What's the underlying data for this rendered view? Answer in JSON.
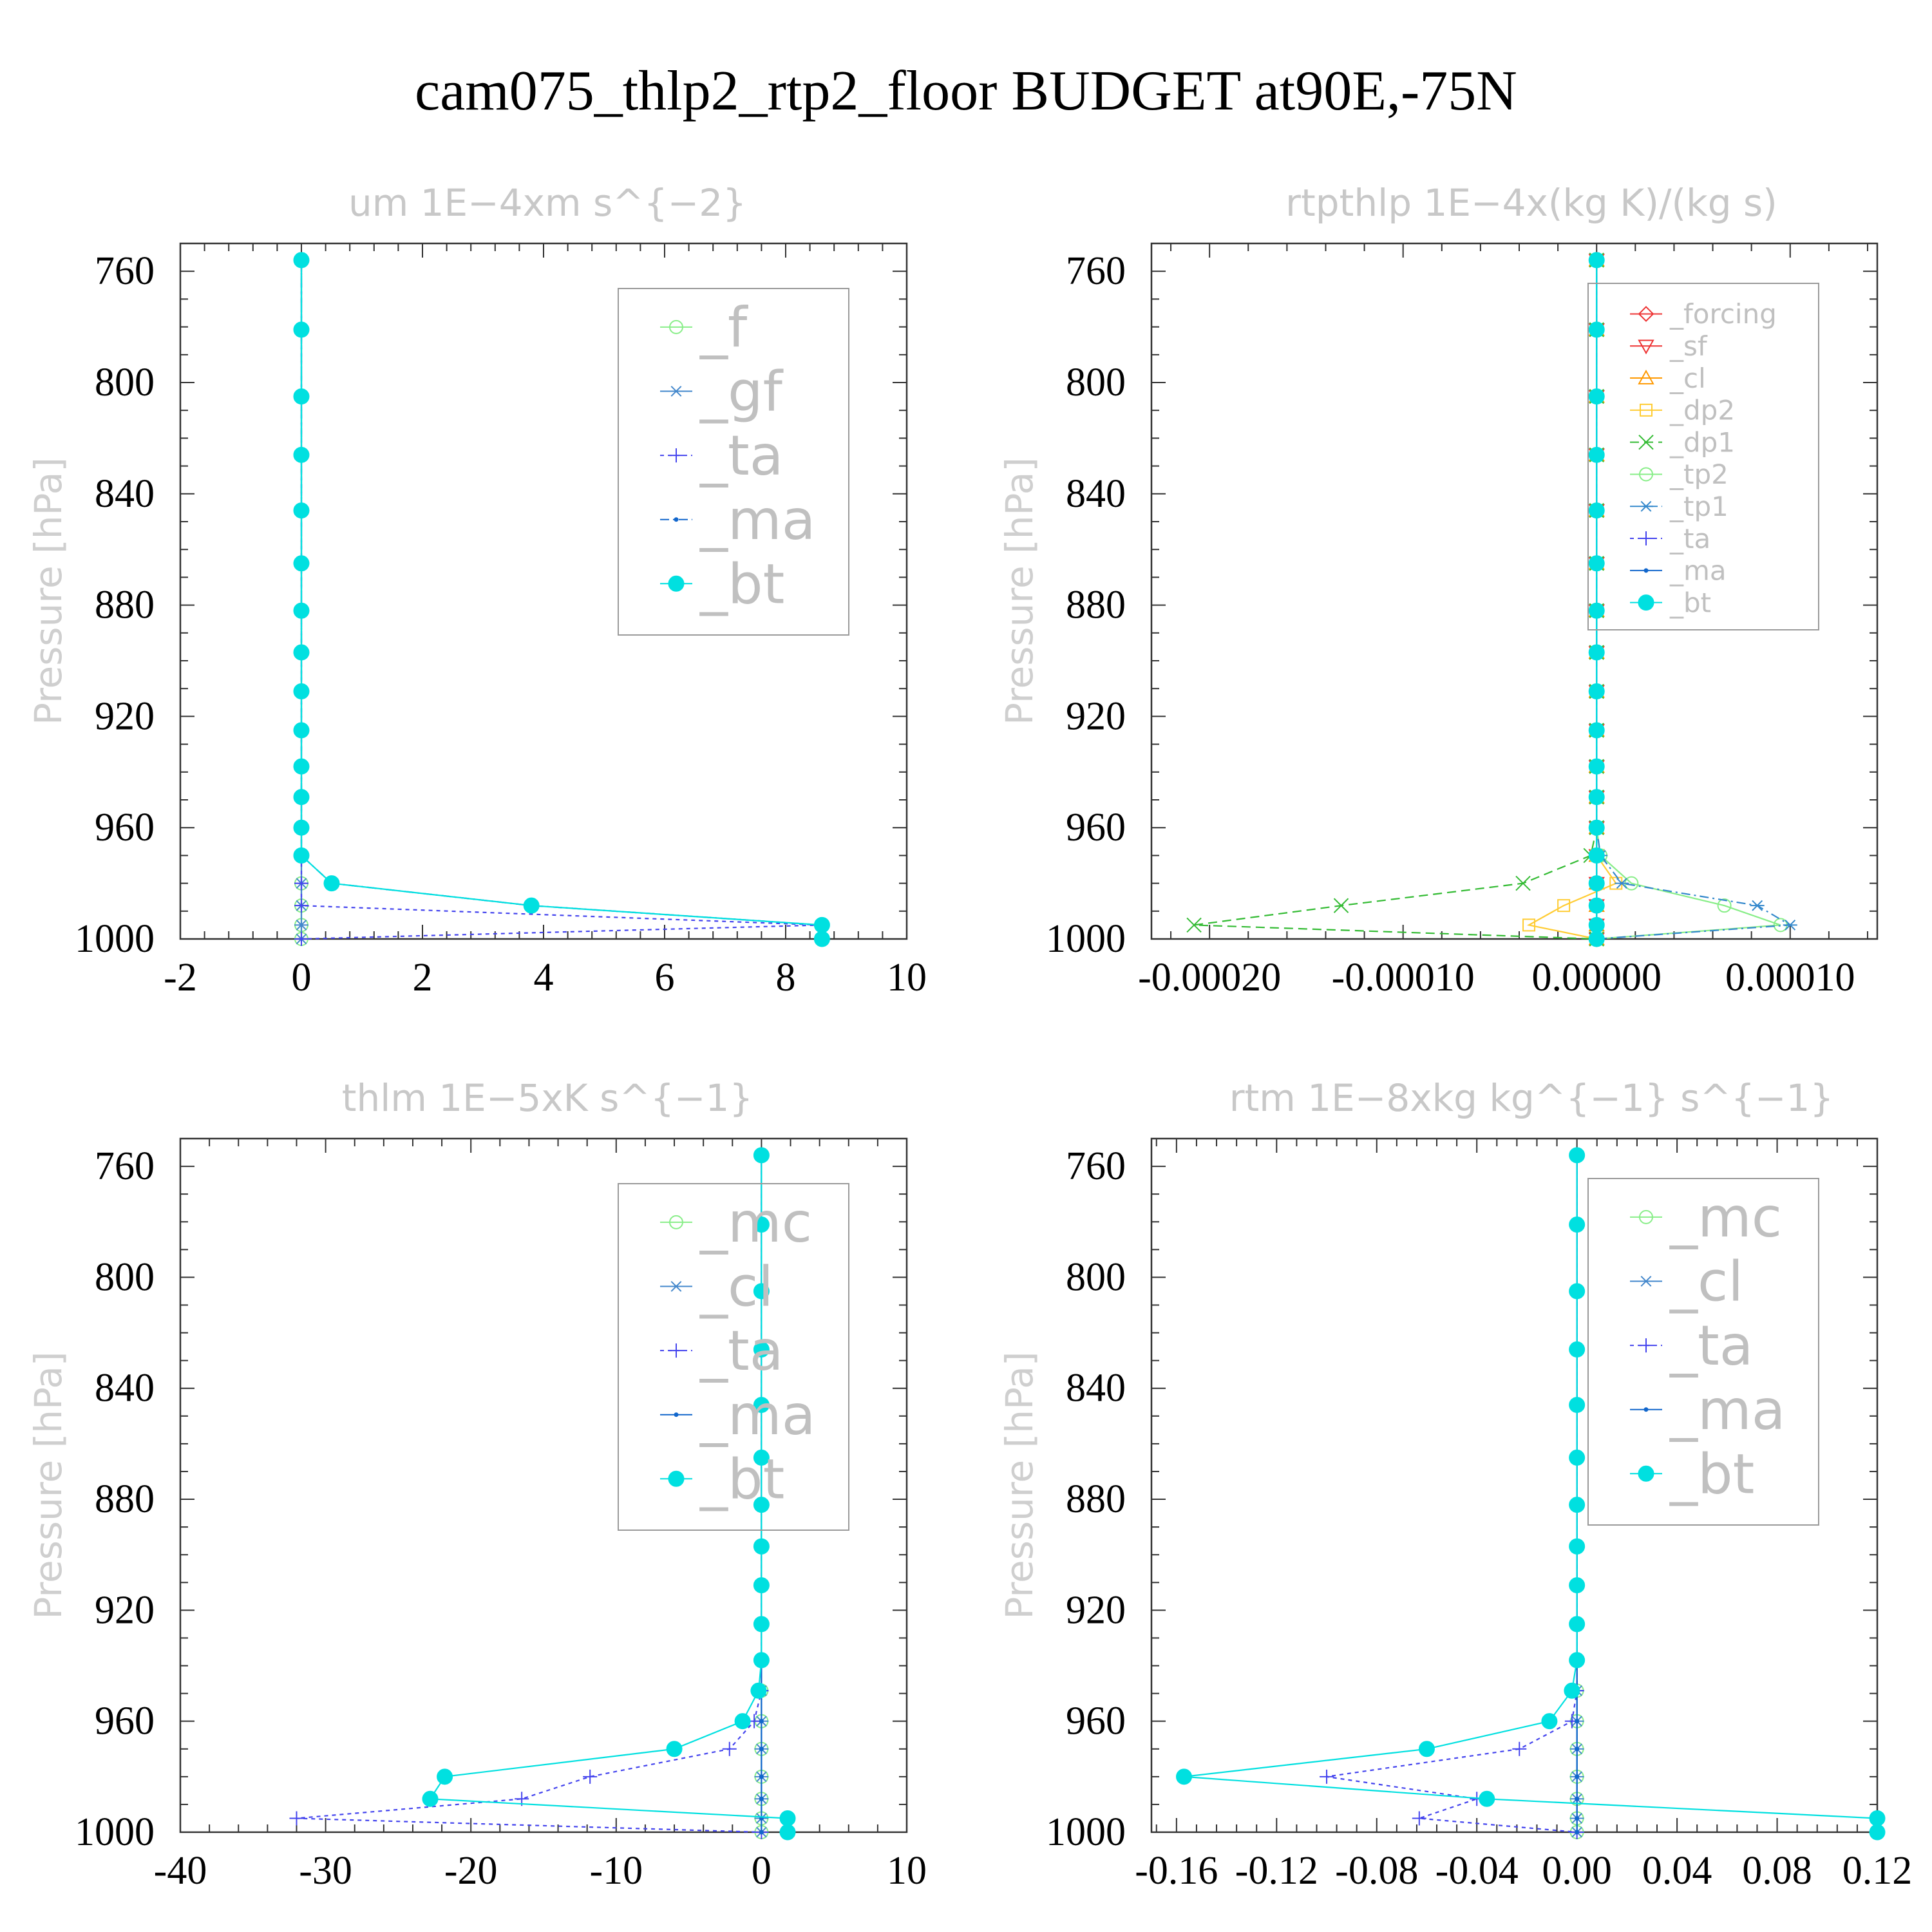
{
  "title": "cam075_thlp2_rtp2_floor  BUDGET at90E,-75N",
  "chart_data": [
    {
      "type": "line",
      "title": "um   1E−4xm s^{−2}",
      "ylabel": "Pressure [hPa]",
      "xlim": [
        -2,
        10
      ],
      "ylim": [
        1000,
        750
      ],
      "xticks": [
        -2,
        0,
        2,
        4,
        6,
        8,
        10
      ],
      "xtick_labels": [
        "-2",
        "0",
        "2",
        "4",
        "6",
        "8",
        "10"
      ],
      "yticks": [
        760,
        800,
        840,
        880,
        920,
        960,
        1000
      ],
      "ytick_labels": [
        "760",
        "800",
        "840",
        "880",
        "920",
        "960",
        "1000"
      ],
      "legend_position": "top-right",
      "legend_font": 86,
      "levels": [
        756,
        781,
        805,
        826,
        846,
        865,
        882,
        897,
        911,
        925,
        938,
        949,
        960,
        970,
        980,
        988,
        995,
        1000
      ],
      "series": [
        {
          "name": "_f",
          "color": "#88ee88",
          "marker": "circle",
          "dash": "",
          "values": [
            0,
            0,
            0,
            0,
            0,
            0,
            0,
            0,
            0,
            0,
            0,
            0,
            0,
            0,
            0,
            0,
            0,
            0
          ]
        },
        {
          "name": "_gf",
          "color": "#4488cc",
          "marker": "star",
          "dash": "",
          "values": [
            0,
            0,
            0,
            0,
            0,
            0,
            0,
            0,
            0,
            0,
            0,
            0,
            0,
            0,
            0,
            0,
            0,
            0
          ]
        },
        {
          "name": "_ta",
          "color": "#4444ee",
          "marker": "plus",
          "dash": "6,6",
          "values": [
            0,
            0,
            0,
            0,
            0,
            0,
            0,
            0,
            0,
            0,
            0,
            0,
            0,
            0,
            0,
            0,
            8.6,
            0
          ]
        },
        {
          "name": "_ma",
          "color": "#1166cc",
          "marker": "dot",
          "dash": "14,6,3,6",
          "values": [
            0,
            0,
            0,
            0,
            0,
            0,
            0,
            0,
            0,
            0,
            0,
            0,
            0,
            0,
            0.5,
            3.8,
            8.6,
            8.6
          ]
        },
        {
          "name": "_bt",
          "color": "#00e0e0",
          "marker": "filled",
          "dash": "",
          "values": [
            0,
            0,
            0,
            0,
            0,
            0,
            0,
            0,
            0,
            0,
            0,
            0,
            0,
            0,
            0.5,
            3.8,
            8.6,
            8.6
          ]
        }
      ]
    },
    {
      "type": "line",
      "title": "rtpthlp   1E−4x(kg K)/(kg s)",
      "ylabel": "Pressure [hPa]",
      "xlim": [
        -0.00023,
        0.000145
      ],
      "ylim": [
        1000,
        750
      ],
      "xticks": [
        -0.0002,
        -0.0001,
        0.0,
        0.0001
      ],
      "xtick_labels": [
        "-0.00020",
        "-0.00010",
        "0.00000",
        "0.00010"
      ],
      "yticks": [
        760,
        800,
        840,
        880,
        920,
        960,
        1000
      ],
      "ytick_labels": [
        "760",
        "800",
        "840",
        "880",
        "920",
        "960",
        "1000"
      ],
      "legend_position": "top-right",
      "legend_font": 42,
      "levels": [
        756,
        781,
        805,
        826,
        846,
        865,
        882,
        897,
        911,
        925,
        938,
        949,
        960,
        970,
        980,
        988,
        995,
        1000
      ],
      "series": [
        {
          "name": "_forcing",
          "color": "#ee3333",
          "marker": "diamond",
          "dash": "",
          "values": [
            0,
            0,
            0,
            0,
            0,
            0,
            0,
            0,
            0,
            0,
            0,
            0,
            0,
            0,
            0,
            0,
            0,
            0
          ]
        },
        {
          "name": "_sf",
          "color": "#ee3333",
          "marker": "tri-down",
          "dash": "",
          "values": [
            0,
            0,
            0,
            0,
            0,
            0,
            0,
            0,
            0,
            0,
            0,
            0,
            0,
            0,
            0,
            0,
            0,
            0
          ]
        },
        {
          "name": "_cl",
          "color": "#ff9900",
          "marker": "tri-up",
          "dash": "",
          "values": [
            0,
            0,
            0,
            0,
            0,
            0,
            0,
            0,
            0,
            0,
            0,
            0,
            0,
            0,
            0,
            0,
            0,
            0
          ]
        },
        {
          "name": "_dp2",
          "color": "#ffcc33",
          "marker": "square",
          "dash": "",
          "values": [
            0,
            0,
            0,
            0,
            0,
            0,
            0,
            0,
            0,
            0,
            0,
            0,
            0,
            0,
            1e-05,
            -1.7e-05,
            -3.5e-05,
            0
          ]
        },
        {
          "name": "_dp1",
          "color": "#33bb33",
          "marker": "cross",
          "dash": "14,8",
          "values": [
            0,
            0,
            0,
            0,
            0,
            0,
            0,
            0,
            0,
            0,
            0,
            0,
            0,
            -3e-06,
            -3.8e-05,
            -0.000132,
            -0.000208,
            0
          ]
        },
        {
          "name": "_tp2",
          "color": "#88ee88",
          "marker": "circle",
          "dash": "",
          "values": [
            0,
            0,
            0,
            0,
            0,
            0,
            0,
            0,
            0,
            0,
            0,
            0,
            0,
            2e-06,
            1.8e-05,
            6.6e-05,
            9.5e-05,
            0
          ]
        },
        {
          "name": "_tp1",
          "color": "#3388cc",
          "marker": "star",
          "dash": "14,6,3,6",
          "values": [
            0,
            0,
            0,
            0,
            0,
            0,
            0,
            0,
            0,
            0,
            0,
            0,
            0,
            2e-06,
            1.3e-05,
            8.3e-05,
            0.0001,
            0
          ]
        },
        {
          "name": "_ta",
          "color": "#4444ee",
          "marker": "plus",
          "dash": "6,6",
          "values": [
            0,
            0,
            0,
            0,
            0,
            0,
            0,
            0,
            0,
            0,
            0,
            0,
            0,
            0,
            0,
            0,
            0,
            0
          ]
        },
        {
          "name": "_ma",
          "color": "#1166cc",
          "marker": "dot",
          "dash": "",
          "values": [
            0,
            0,
            0,
            0,
            0,
            0,
            0,
            0,
            0,
            0,
            0,
            0,
            0,
            0,
            0,
            0,
            0,
            0
          ]
        },
        {
          "name": "_bt",
          "color": "#00e0e0",
          "marker": "filled",
          "dash": "",
          "values": [
            0,
            0,
            0,
            0,
            0,
            0,
            0,
            0,
            0,
            0,
            0,
            0,
            0,
            0,
            0,
            0,
            0,
            0
          ]
        }
      ]
    },
    {
      "type": "line",
      "title": "thlm   1E−5xK s^{−1}",
      "ylabel": "Pressure [hPa]",
      "xlim": [
        -40,
        10
      ],
      "ylim": [
        1000,
        750
      ],
      "xticks": [
        -40,
        -30,
        -20,
        -10,
        0,
        10
      ],
      "xtick_labels": [
        "-40",
        "-30",
        "-20",
        "-10",
        "0",
        "10"
      ],
      "yticks": [
        760,
        800,
        840,
        880,
        920,
        960,
        1000
      ],
      "ytick_labels": [
        "760",
        "800",
        "840",
        "880",
        "920",
        "960",
        "1000"
      ],
      "legend_position": "top-right",
      "legend_font": 86,
      "levels": [
        756,
        781,
        805,
        826,
        846,
        865,
        882,
        897,
        911,
        925,
        938,
        949,
        960,
        970,
        980,
        988,
        995,
        1000
      ],
      "series": [
        {
          "name": "_mc",
          "color": "#88ee88",
          "marker": "circle",
          "dash": "",
          "values": [
            0,
            0,
            0,
            0,
            0,
            0,
            0,
            0,
            0,
            0,
            0,
            0,
            0,
            0,
            0,
            0,
            0,
            0
          ]
        },
        {
          "name": "_cl",
          "color": "#4488cc",
          "marker": "star",
          "dash": "",
          "values": [
            0,
            0,
            0,
            0,
            0,
            0,
            0,
            0,
            0,
            0,
            0,
            0,
            0,
            0,
            0,
            0,
            0,
            0
          ]
        },
        {
          "name": "_ta",
          "color": "#4444ee",
          "marker": "plus",
          "dash": "6,6",
          "values": [
            0,
            0,
            0,
            0,
            0,
            0,
            0,
            0,
            0,
            0,
            0,
            0,
            -0.5,
            -2.2,
            -11.8,
            -16.5,
            -32,
            0
          ]
        },
        {
          "name": "_ma",
          "color": "#1166cc",
          "marker": "dot",
          "dash": "",
          "values": [
            0,
            0,
            0,
            0,
            0,
            0,
            0,
            0,
            0,
            0,
            0,
            0,
            0,
            0,
            0,
            0,
            0,
            0
          ]
        },
        {
          "name": "_bt",
          "color": "#00e0e0",
          "marker": "filled",
          "dash": "",
          "values": [
            0,
            0,
            0,
            0,
            0,
            0,
            0,
            0,
            0,
            0,
            0,
            -0.2,
            -1.3,
            -6,
            -21.8,
            -22.8,
            1.8,
            1.8
          ]
        }
      ]
    },
    {
      "type": "line",
      "title": "rtm   1E−8xkg kg^{−1} s^{−1}",
      "ylabel": "Pressure [hPa]",
      "xlim": [
        -0.17,
        0.12
      ],
      "ylim": [
        1000,
        750
      ],
      "xticks": [
        -0.16,
        -0.12,
        -0.08,
        -0.04,
        0.0,
        0.04,
        0.08,
        0.12
      ],
      "xtick_labels": [
        "-0.16",
        "-0.12",
        "-0.08",
        "-0.04",
        "0.00",
        "0.04",
        "0.08",
        "0.12"
      ],
      "yticks": [
        760,
        800,
        840,
        880,
        920,
        960,
        1000
      ],
      "ytick_labels": [
        "760",
        "800",
        "840",
        "880",
        "920",
        "960",
        "1000"
      ],
      "legend_position": "top-right",
      "legend_font": 86,
      "levels": [
        756,
        781,
        805,
        826,
        846,
        865,
        882,
        897,
        911,
        925,
        938,
        949,
        960,
        970,
        980,
        988,
        995,
        1000
      ],
      "series": [
        {
          "name": "_mc",
          "color": "#88ee88",
          "marker": "circle",
          "dash": "",
          "values": [
            0,
            0,
            0,
            0,
            0,
            0,
            0,
            0,
            0,
            0,
            0,
            0,
            0,
            0,
            0,
            0,
            0,
            0
          ]
        },
        {
          "name": "_cl",
          "color": "#4488cc",
          "marker": "star",
          "dash": "",
          "values": [
            0,
            0,
            0,
            0,
            0,
            0,
            0,
            0,
            0,
            0,
            0,
            0,
            0,
            0,
            0,
            0,
            0,
            0
          ]
        },
        {
          "name": "_ta",
          "color": "#4444ee",
          "marker": "plus",
          "dash": "6,6",
          "values": [
            0,
            0,
            0,
            0,
            0,
            0,
            0,
            0,
            0,
            0,
            0,
            0,
            -0.002,
            -0.023,
            -0.1,
            -0.04,
            -0.063,
            0
          ]
        },
        {
          "name": "_ma",
          "color": "#1166cc",
          "marker": "dot",
          "dash": "",
          "values": [
            0,
            0,
            0,
            0,
            0,
            0,
            0,
            0,
            0,
            0,
            0,
            0,
            0,
            0,
            0,
            0,
            0,
            0
          ]
        },
        {
          "name": "_bt",
          "color": "#00e0e0",
          "marker": "filled",
          "dash": "",
          "values": [
            0,
            0,
            0,
            0,
            0,
            0,
            0,
            0,
            0,
            0,
            0,
            -0.002,
            -0.011,
            -0.06,
            -0.157,
            -0.036,
            0.12,
            0.12
          ]
        }
      ]
    }
  ]
}
